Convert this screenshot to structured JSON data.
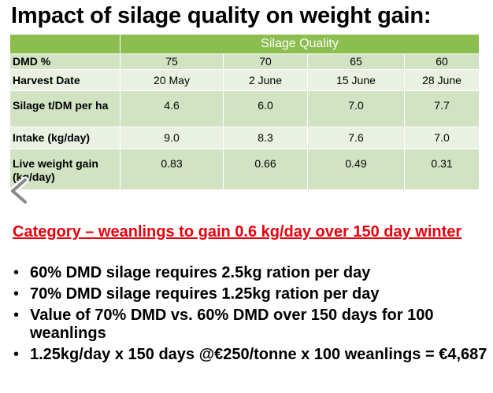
{
  "title": "Impact of silage quality on weight gain:",
  "table": {
    "header": "Silage Quality",
    "rows": [
      {
        "label": "DMD %",
        "values": [
          "75",
          "70",
          "65",
          "60"
        ]
      },
      {
        "label": "Harvest Date",
        "values": [
          "20 May",
          "2 June",
          "15 June",
          "28 June"
        ]
      },
      {
        "label": "Silage t/DM per ha",
        "values": [
          "4.6",
          "6.0",
          "7.0",
          "7.7"
        ]
      },
      {
        "label": "Intake (kg/day)",
        "values": [
          "9.0",
          "8.3",
          "7.6",
          "7.0"
        ]
      },
      {
        "label": "Live weight gain (kg/day)",
        "values": [
          "0.83",
          "0.66",
          "0.49",
          "0.31"
        ]
      }
    ]
  },
  "nav": {
    "prev_icon": "chevron-left-icon"
  },
  "category": "Category – weanlings to gain 0.6 kg/day over 150 day winter",
  "bullets": [
    "60% DMD silage requires 2.5kg ration per day",
    "70% DMD silage requires 1.25kg ration per day",
    "Value of 70% DMD vs. 60% DMD over 150 days for 100 weanlings",
    "1.25kg/day x 150 days @€250/tonne x 100 weanlings = €4,687"
  ],
  "colors": {
    "header_green": "#8cbd4f",
    "row_dark": "#d2e3c4",
    "row_light": "#e9f1e2",
    "category_red": "#e8000d"
  }
}
